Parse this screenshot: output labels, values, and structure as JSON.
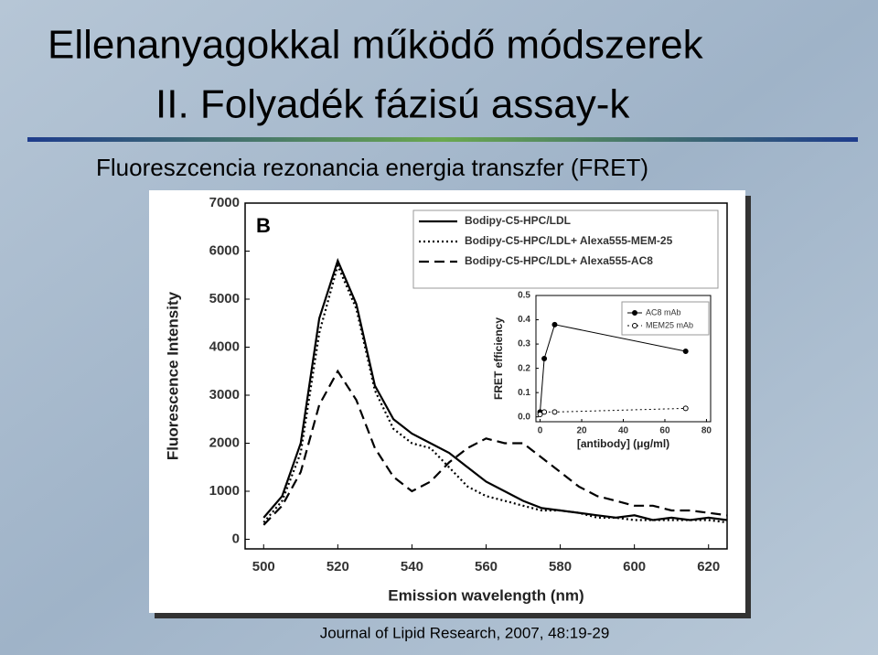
{
  "slide_title": "Ellenanyagokkal működő módszerek",
  "slide_subtitle": "II. Folyadék fázisú assay-k",
  "section": "Fluoreszcencia rezonancia energia transzfer (FRET)",
  "citation": "Journal of Lipid Research, 2007, 48:19-29",
  "chart_data": [
    {
      "type": "line",
      "panel_label": "B",
      "xlabel": "Emission wavelength (nm)",
      "ylabel": "Fluorescence Intensity",
      "x": [
        500,
        505,
        510,
        515,
        520,
        525,
        530,
        535,
        540,
        545,
        550,
        555,
        560,
        565,
        570,
        575,
        580,
        585,
        590,
        595,
        600,
        605,
        610,
        615,
        620,
        625
      ],
      "xlim": [
        495,
        625
      ],
      "xticks": [
        500,
        520,
        540,
        560,
        580,
        600,
        620
      ],
      "ylim": [
        -200,
        7000
      ],
      "yticks": [
        0,
        1000,
        2000,
        3000,
        4000,
        5000,
        6000,
        7000
      ],
      "legend": "top-right",
      "series": [
        {
          "name": "Bodipy-C5-HPC/LDL",
          "color": "#000000",
          "line_style": "solid",
          "values": [
            450,
            900,
            2000,
            4600,
            5800,
            4900,
            3200,
            2500,
            2200,
            2000,
            1800,
            1500,
            1200,
            1000,
            800,
            650,
            600,
            550,
            500,
            450,
            500,
            400,
            450,
            400,
            450,
            400
          ]
        },
        {
          "name": "Bodipy-C5-HPC/LDL+ Alexa555-MEM-25",
          "color": "#000000",
          "line_style": "dotted",
          "values": [
            350,
            800,
            1800,
            4300,
            5700,
            4800,
            3100,
            2300,
            2000,
            1900,
            1500,
            1100,
            900,
            800,
            700,
            600,
            600,
            550,
            450,
            450,
            400,
            400,
            400,
            400,
            400,
            350
          ]
        },
        {
          "name": "Bodipy-C5-HPC/LDL+ Alexa555-AC8",
          "color": "#000000",
          "line_style": "dashed",
          "values": [
            300,
            700,
            1400,
            2800,
            3500,
            2900,
            1900,
            1300,
            1000,
            1200,
            1600,
            1900,
            2100,
            2000,
            2000,
            1700,
            1400,
            1100,
            900,
            800,
            700,
            700,
            600,
            600,
            550,
            500
          ]
        }
      ]
    },
    {
      "type": "line",
      "xlabel": "[antibody] (μg/ml)",
      "ylabel": "FRET efficiency",
      "x": [
        0,
        2,
        7,
        70
      ],
      "xlim": [
        -2,
        82
      ],
      "xticks": [
        0,
        20,
        40,
        60,
        80
      ],
      "ylim": [
        -0.02,
        0.5
      ],
      "yticks": [
        {
          "value": 0,
          "label": "0.0"
        },
        0.1,
        0.2,
        0.3,
        0.4,
        0.5
      ],
      "legend": "top-right",
      "series": [
        {
          "name": "AC8 mAb",
          "color": "#000000",
          "line_style": "solid",
          "marker": "filled",
          "values": [
            0.02,
            0.24,
            0.38,
            0.27
          ]
        },
        {
          "name": "MEM25 mAb",
          "color": "#000000",
          "line_style": "dotted",
          "marker": "open",
          "values": [
            0.01,
            0.02,
            0.02,
            0.035
          ]
        }
      ]
    }
  ]
}
